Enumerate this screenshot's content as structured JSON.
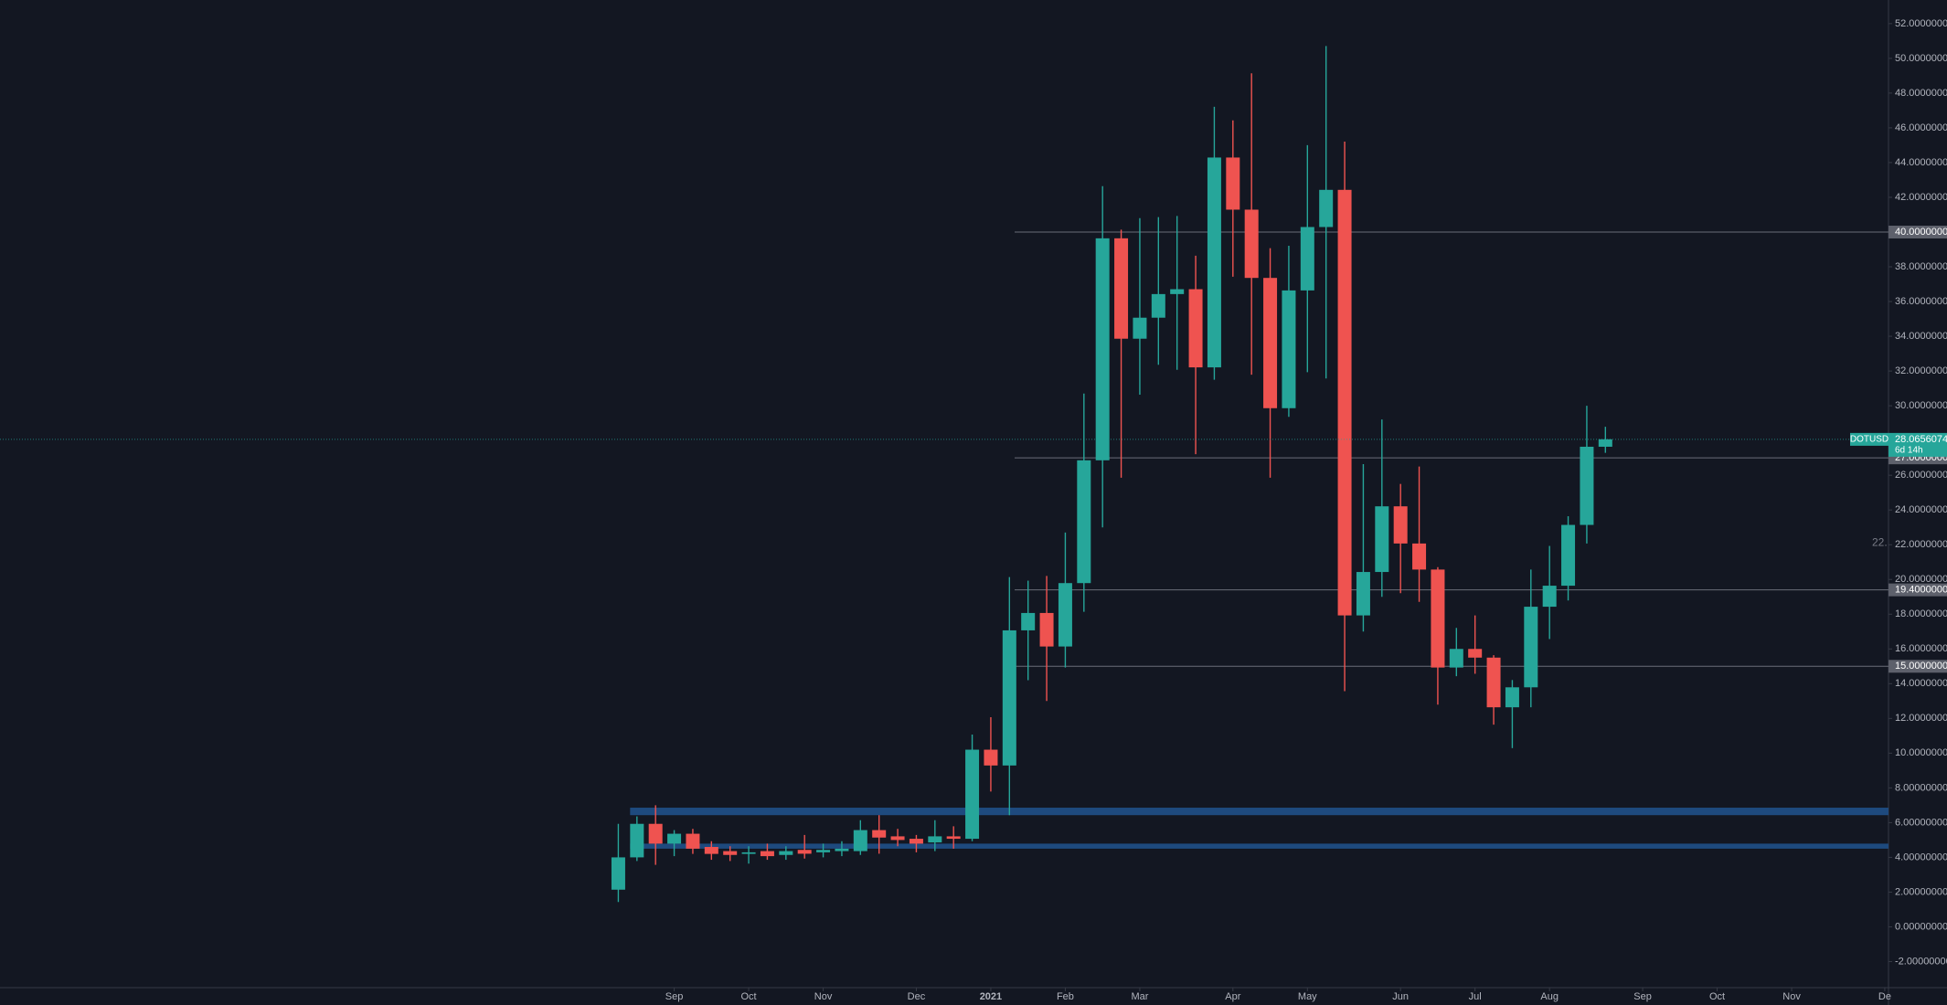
{
  "chart_data": {
    "type": "candlestick",
    "open": [
      2.14,
      4.0,
      5.93,
      4.79,
      5.36,
      4.6,
      4.36,
      4.2,
      4.36,
      4.14,
      4.43,
      4.29,
      4.36,
      4.36,
      5.57,
      5.21,
      5.07,
      4.86,
      5.21,
      5.07,
      10.2,
      9.29,
      17.07,
      18.07,
      16.14,
      19.79,
      26.86,
      39.64,
      33.86,
      35.07,
      36.43,
      36.71,
      32.21,
      44.29,
      41.29,
      37.36,
      29.86,
      36.64,
      40.29,
      42.43,
      17.93,
      20.43,
      24.21,
      22.07,
      20.57,
      14.93,
      16.0,
      15.5,
      12.64,
      13.79,
      18.43,
      19.64,
      23.14,
      27.64
    ],
    "high": [
      5.93,
      6.36,
      7.0,
      5.57,
      5.64,
      4.93,
      4.64,
      4.64,
      4.79,
      4.64,
      5.29,
      4.79,
      4.93,
      6.14,
      6.43,
      5.64,
      5.29,
      6.14,
      5.79,
      11.07,
      12.07,
      20.14,
      19.93,
      20.2,
      22.7,
      30.7,
      42.64,
      40.14,
      40.8,
      40.86,
      40.93,
      38.64,
      47.21,
      46.43,
      49.14,
      39.07,
      39.21,
      45.0,
      50.71,
      45.21,
      26.64,
      29.21,
      25.5,
      26.5,
      20.71,
      17.21,
      17.93,
      15.64,
      14.21,
      20.57,
      21.93,
      23.64,
      30.0,
      28.79
    ],
    "low": [
      1.43,
      3.79,
      3.57,
      4.07,
      4.2,
      3.86,
      3.79,
      3.64,
      3.86,
      3.86,
      3.93,
      4.0,
      4.07,
      4.14,
      4.21,
      4.64,
      4.29,
      4.36,
      4.5,
      4.93,
      7.79,
      6.43,
      14.2,
      13.0,
      14.93,
      18.14,
      23.0,
      25.86,
      30.64,
      32.36,
      32.07,
      27.21,
      31.5,
      37.43,
      31.79,
      25.86,
      29.36,
      31.93,
      31.57,
      13.57,
      17.0,
      19.0,
      19.21,
      18.71,
      12.79,
      14.43,
      14.57,
      11.64,
      10.29,
      12.64,
      16.57,
      18.79,
      22.07,
      27.29
    ],
    "close": [
      4.0,
      5.93,
      4.79,
      5.36,
      4.5,
      4.2,
      4.14,
      4.29,
      4.07,
      4.36,
      4.21,
      4.43,
      4.5,
      5.57,
      5.14,
      5.0,
      4.79,
      5.21,
      5.07,
      10.2,
      9.29,
      17.07,
      18.07,
      16.14,
      19.79,
      26.86,
      39.64,
      33.86,
      35.07,
      36.43,
      36.71,
      32.21,
      44.29,
      41.29,
      37.36,
      29.86,
      36.64,
      40.29,
      42.43,
      17.93,
      20.43,
      24.21,
      22.07,
      20.57,
      14.93,
      16.0,
      15.5,
      12.64,
      13.79,
      18.43,
      19.64,
      23.14,
      27.64,
      28.07
    ],
    "up_color": "#26a69a",
    "down_color": "#ef5350",
    "xlim": [
      -33.2,
      68.2
    ],
    "xticks": [
      {
        "value": 3,
        "label": "Sep"
      },
      {
        "value": 7,
        "label": "Oct"
      },
      {
        "value": 11,
        "label": "Nov"
      },
      {
        "value": 16,
        "label": "Dec"
      },
      {
        "value": 20,
        "label": "2021"
      },
      {
        "value": 24,
        "label": "Feb"
      },
      {
        "value": 28,
        "label": "Mar"
      },
      {
        "value": 33,
        "label": "Apr"
      },
      {
        "value": 37,
        "label": "May"
      },
      {
        "value": 42,
        "label": "Jun"
      },
      {
        "value": 46,
        "label": "Jul"
      },
      {
        "value": 50,
        "label": "Aug"
      },
      {
        "value": 55,
        "label": "Sep"
      },
      {
        "value": 59,
        "label": "Oct"
      },
      {
        "value": 63,
        "label": "Nov"
      },
      {
        "value": 68,
        "label": "De"
      }
    ],
    "ylim": [
      -3.5,
      53.36
    ],
    "yticks": [
      {
        "value": -2,
        "label": "-2.00000000"
      },
      {
        "value": 0,
        "label": "0.00000000"
      },
      {
        "value": 2,
        "label": "2.00000000"
      },
      {
        "value": 4,
        "label": "4.00000000"
      },
      {
        "value": 6,
        "label": "6.00000000"
      },
      {
        "value": 8,
        "label": "8.00000000"
      },
      {
        "value": 10,
        "label": "10.00000000"
      },
      {
        "value": 12,
        "label": "12.00000000"
      },
      {
        "value": 14,
        "label": "14.00000000"
      },
      {
        "value": 16,
        "label": "16.00000000"
      },
      {
        "value": 18,
        "label": "18.00000000"
      },
      {
        "value": 20,
        "label": "20.00000000"
      },
      {
        "value": 22,
        "label": "22.00000000"
      },
      {
        "value": 24,
        "label": "24.00000000"
      },
      {
        "value": 26,
        "label": "26.00000000"
      },
      {
        "value": 28,
        "label": "28.00000000"
      },
      {
        "value": 30,
        "label": "30.00000000"
      },
      {
        "value": 32,
        "label": "32.00000000"
      },
      {
        "value": 34,
        "label": "34.00000000"
      },
      {
        "value": 36,
        "label": "36.00000000"
      },
      {
        "value": 38,
        "label": "38.00000000"
      },
      {
        "value": 40,
        "label": "40.00000000"
      },
      {
        "value": 42,
        "label": "42.00000000"
      },
      {
        "value": 44,
        "label": "44.00000000"
      },
      {
        "value": 46,
        "label": "46.00000000"
      },
      {
        "value": 48,
        "label": "48.00000000"
      },
      {
        "value": 50,
        "label": "50.00000000"
      },
      {
        "value": 52,
        "label": "52.00000000"
      }
    ],
    "levels": [
      {
        "value": 40,
        "label": "40.00000000"
      },
      {
        "value": 27,
        "label": "27.00000000"
      },
      {
        "value": 19.4,
        "label": "19.40000000"
      },
      {
        "value": 15,
        "label": "15.00000000"
      }
    ],
    "zones": [
      {
        "low": 6.43,
        "high": 6.86
      },
      {
        "low": 4.5,
        "high": 4.79
      }
    ],
    "zone_start": 1,
    "zone_color": "#1e4a7e",
    "price": {
      "name": "DOTUSD",
      "value": 28.0656074,
      "label": "28.06560740",
      "countdown": "6d 14h"
    },
    "partial_label": {
      "value": 22,
      "label": "22."
    }
  }
}
